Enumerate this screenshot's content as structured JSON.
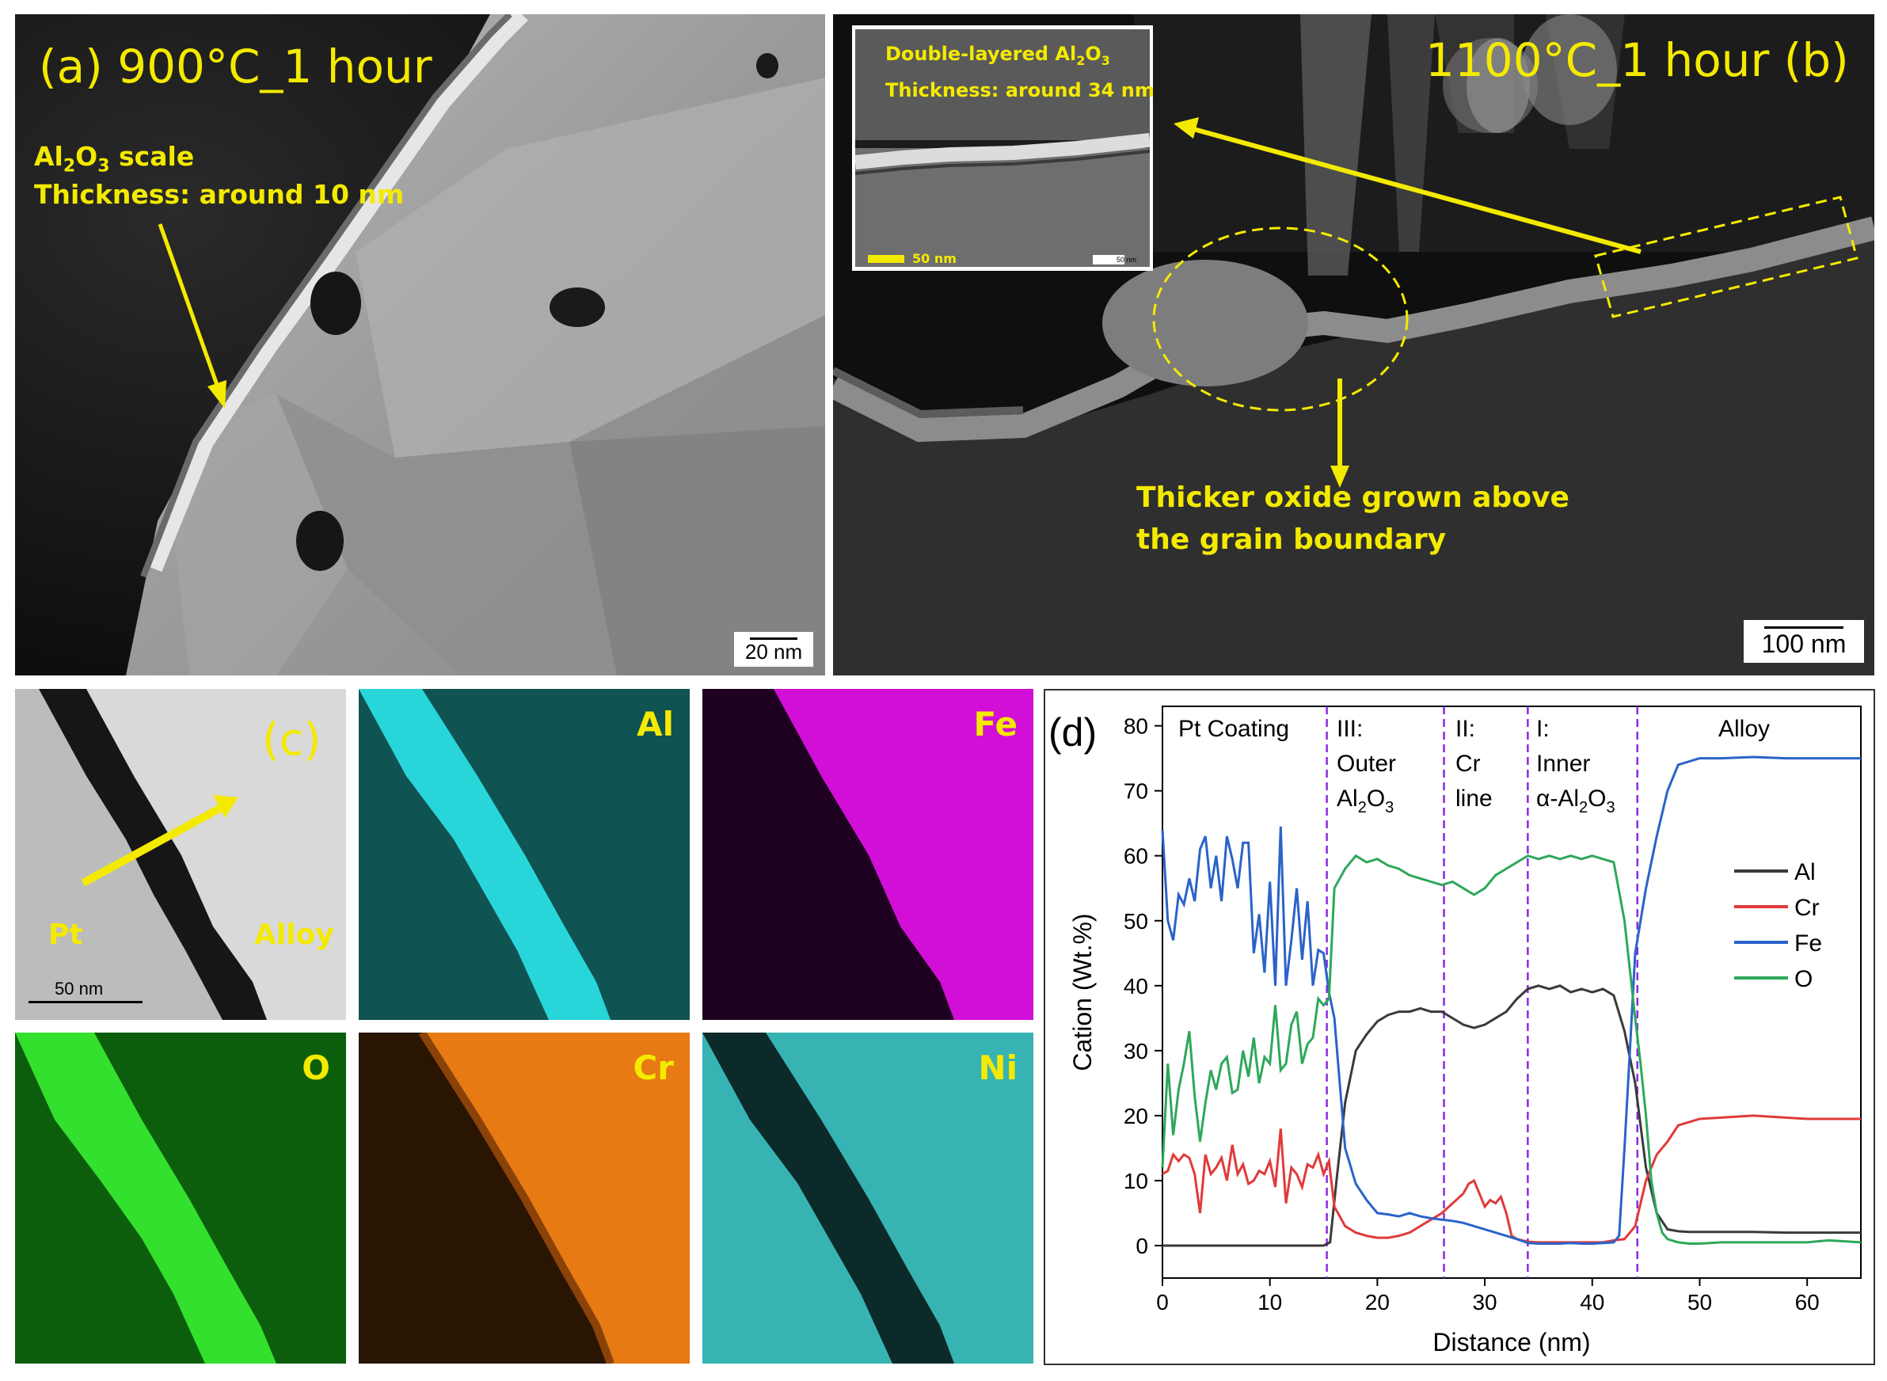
{
  "panel_a": {
    "label": "(a) 900°C_1 hour",
    "annotation_line1_prefix": "Al",
    "annotation_line1_sub1": "2",
    "annotation_line1_mid": "O",
    "annotation_line1_sub2": "3",
    "annotation_line1_suffix": " scale",
    "annotation_line2": "Thickness: around 10 nm",
    "scalebar": "20 nm"
  },
  "panel_b": {
    "label": "1100°C_1 hour  (b)",
    "inset_line1_prefix": "Double-layered Al",
    "inset_line1_sub1": "2",
    "inset_line1_mid": "O",
    "inset_line1_sub2": "3",
    "inset_line2": "Thickness: around 34 nm",
    "inset_scalebar": "50 nm",
    "inset_scalebar_small": "50 nm",
    "annotation_line1": "Thicker oxide grown above",
    "annotation_line2": "the grain boundary",
    "scalebar": "100 nm"
  },
  "panel_c": {
    "label": "(c)",
    "pt_label": "Pt",
    "alloy_label": "Alloy",
    "scalebar": "50 nm",
    "maps": [
      {
        "element": "Al",
        "color": "#28d6d9"
      },
      {
        "element": "Fe",
        "color": "#d10fd6"
      },
      {
        "element": "O",
        "color": "#33e02e"
      },
      {
        "element": "Cr",
        "color": "#e77a12"
      },
      {
        "element": "Ni",
        "color": "#38b3b3"
      }
    ]
  },
  "panel_d": {
    "label": "(d)",
    "regions": [
      {
        "line1": "Pt Coating",
        "line2": "",
        "line3": ""
      },
      {
        "line1": "III:",
        "line2": "Outer",
        "line3": "Al2O3"
      },
      {
        "line1": "II:",
        "line2": "Cr",
        "line3": "line"
      },
      {
        "line1": "I:",
        "line2": "Inner",
        "line3": "α-Al2O3"
      },
      {
        "line1": "Alloy",
        "line2": "",
        "line3": ""
      }
    ]
  },
  "chart_data": {
    "type": "line",
    "xlabel": "Distance (nm)",
    "ylabel": "Cation (Wt.%)",
    "xlim": [
      0,
      65
    ],
    "ylim": [
      -5,
      83
    ],
    "xticks": [
      0,
      10,
      20,
      30,
      40,
      50,
      60
    ],
    "yticks": [
      0,
      10,
      20,
      30,
      40,
      50,
      60,
      70,
      80
    ],
    "legend_position": "right",
    "boundaries_x": [
      15.3,
      26.2,
      34.0,
      44.2
    ],
    "series": [
      {
        "name": "Al",
        "color": "#3a3a3a",
        "x": [
          0,
          15,
          15.6,
          16.2,
          17,
          18,
          19,
          20,
          21,
          22,
          23,
          24,
          25,
          26,
          27,
          28,
          29,
          30,
          31,
          32,
          33,
          34,
          35,
          36,
          37,
          38,
          39,
          40,
          41,
          42,
          43,
          44,
          45,
          46,
          47,
          48,
          49,
          50,
          52,
          55,
          58,
          60,
          62,
          65
        ],
        "y": [
          0,
          0,
          0.5,
          10,
          22,
          30,
          32.5,
          34.5,
          35.5,
          36,
          36,
          36.5,
          36,
          36,
          35,
          34,
          33.5,
          34,
          35,
          36,
          38,
          39.5,
          40,
          39.5,
          40,
          39,
          39.5,
          39,
          39.5,
          38.5,
          33,
          25,
          12,
          5,
          2.5,
          2.2,
          2.1,
          2.1,
          2.1,
          2.1,
          2.0,
          2.0,
          2.0,
          2.0
        ]
      },
      {
        "name": "Cr",
        "color": "#e03a3a",
        "x": [
          0,
          0.5,
          1,
          1.5,
          2,
          2.5,
          3,
          3.5,
          4,
          4.5,
          5,
          5.5,
          6,
          6.5,
          7,
          7.5,
          8,
          8.5,
          9,
          9.5,
          10,
          10.5,
          11,
          11.5,
          12,
          12.5,
          13,
          13.5,
          14,
          14.5,
          15,
          15.5,
          16,
          17,
          18,
          19,
          20,
          21,
          22,
          23,
          24,
          25,
          26,
          27,
          28,
          28.5,
          29,
          29.5,
          30,
          30.5,
          31,
          31.5,
          32,
          32.5,
          33,
          34,
          35,
          36,
          37,
          38,
          39,
          40,
          41,
          42,
          43,
          44,
          45,
          46,
          47,
          48,
          50,
          55,
          60,
          65
        ],
        "y": [
          11,
          11.5,
          14,
          13,
          14,
          13.5,
          11,
          5,
          14,
          11,
          12,
          13.5,
          10,
          15.5,
          11,
          12.5,
          9.5,
          10,
          11.5,
          11,
          13,
          9,
          18,
          6.5,
          12,
          11,
          9,
          12.5,
          12,
          14,
          11,
          13,
          6,
          3,
          2,
          1.5,
          1.2,
          1.2,
          1.5,
          2,
          3,
          4,
          5,
          6.5,
          8,
          9.5,
          10,
          8,
          6,
          7,
          6.5,
          7.5,
          5,
          1.5,
          1,
          0.6,
          0.5,
          0.5,
          0.5,
          0.5,
          0.5,
          0.5,
          0.5,
          0.8,
          1,
          3,
          10,
          14,
          16,
          18.5,
          19.5,
          20,
          19.5,
          19.5
        ]
      },
      {
        "name": "Fe",
        "color": "#2a63c9",
        "x": [
          0,
          0.5,
          1,
          1.5,
          2,
          2.5,
          3,
          3.5,
          4,
          4.5,
          5,
          5.5,
          6,
          6.5,
          7,
          7.5,
          8,
          8.5,
          9,
          9.5,
          10,
          10.5,
          11,
          11.5,
          12,
          12.5,
          13,
          13.5,
          14,
          14.5,
          15,
          15.5,
          16,
          17,
          18,
          19,
          20,
          21,
          22,
          23,
          24,
          25,
          26,
          27,
          28,
          29,
          30,
          31,
          32,
          33,
          34,
          35,
          36,
          37,
          38,
          39,
          40,
          41,
          42,
          42.5,
          43,
          43.5,
          44,
          45,
          46,
          47,
          48,
          49,
          50,
          52,
          55,
          58,
          60,
          62,
          65
        ],
        "y": [
          64,
          50,
          47,
          54,
          52.5,
          56.5,
          53,
          61,
          63,
          55,
          60,
          53,
          63,
          59.5,
          55,
          62,
          62,
          45,
          51,
          42,
          56,
          40,
          64.5,
          40,
          47,
          55,
          44,
          53,
          40,
          45.5,
          45,
          39,
          35,
          15,
          9.5,
          7,
          5,
          4.8,
          4.5,
          5,
          4.5,
          4.2,
          4,
          3.8,
          3.5,
          3,
          2.5,
          2,
          1.5,
          1,
          0.4,
          0.3,
          0.3,
          0.3,
          0.4,
          0.3,
          0.3,
          0.4,
          0.5,
          1.5,
          15,
          30,
          45,
          55,
          63,
          70,
          74,
          74.5,
          75,
          75,
          75.2,
          75,
          75,
          75,
          75
        ]
      },
      {
        "name": "O",
        "color": "#2ea85a",
        "x": [
          0,
          0.5,
          1,
          1.5,
          2,
          2.5,
          3,
          3.5,
          4,
          4.5,
          5,
          5.5,
          6,
          6.5,
          7,
          7.5,
          8,
          8.5,
          9,
          9.5,
          10,
          10.5,
          11,
          11.5,
          12,
          12.5,
          13,
          13.5,
          14,
          14.5,
          15,
          15.5,
          16,
          17,
          18,
          19,
          20,
          21,
          22,
          23,
          24,
          25,
          26,
          27,
          28,
          29,
          30,
          31,
          32,
          33,
          34,
          35,
          36,
          37,
          38,
          39,
          40,
          41,
          42,
          43,
          44,
          44.5,
          45,
          45.5,
          46,
          46.5,
          47,
          48,
          49,
          50,
          52,
          55,
          58,
          60,
          62,
          65
        ],
        "y": [
          12,
          28,
          17,
          24,
          28,
          33,
          23,
          16,
          22,
          27,
          24,
          28,
          29,
          23.5,
          24,
          30,
          26,
          32,
          25,
          29,
          28,
          37,
          27,
          28,
          34,
          36,
          28,
          31,
          32,
          38,
          37,
          38,
          55,
          58,
          60,
          59,
          59.5,
          58.5,
          58,
          57,
          56.5,
          56,
          55.5,
          56,
          55,
          54,
          55,
          57,
          58,
          59,
          60,
          59.5,
          60,
          59.5,
          60,
          59.5,
          60,
          59.5,
          59,
          50,
          35,
          28,
          20,
          10,
          5,
          2,
          1,
          0.5,
          0.3,
          0.3,
          0.5,
          0.5,
          0.5,
          0.5,
          0.8,
          0.5
        ]
      }
    ]
  }
}
